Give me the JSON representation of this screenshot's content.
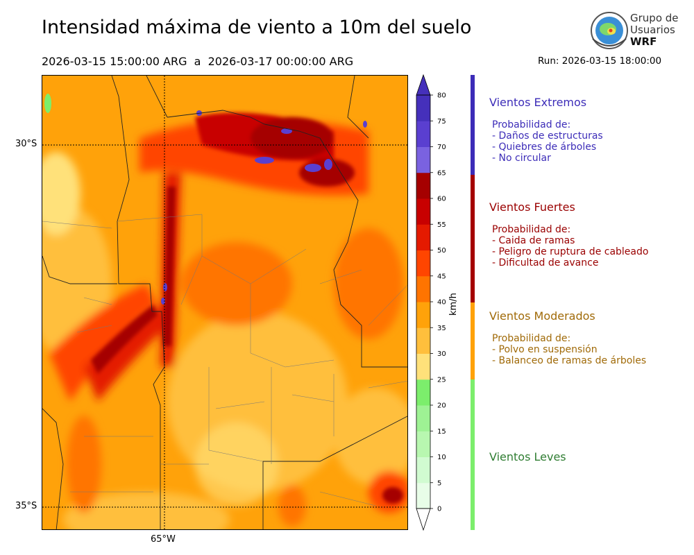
{
  "header": {
    "title": "Intensidad máxima de viento a 10m del suelo",
    "period": "2026-03-15 15:00:00 ARG  a  2026-03-17 00:00:00 ARG",
    "run": "Run: 2026-03-15 18:00:00"
  },
  "logo": {
    "line1": "Grupo de",
    "line2": "Usuarios",
    "line3": "WRF"
  },
  "map": {
    "lat_labels": [
      "30°S",
      "35°S"
    ],
    "lon_labels": [
      "65°W"
    ]
  },
  "colorbar": {
    "unit": "km/h",
    "ticks": [
      "0",
      "5",
      "10",
      "15",
      "20",
      "25",
      "30",
      "35",
      "40",
      "45",
      "50",
      "55",
      "60",
      "65",
      "70",
      "75",
      "80"
    ],
    "colors": [
      "#e8fde8",
      "#d1fbd1",
      "#b8f7b0",
      "#9ef294",
      "#7cee6c",
      "#ffe17a",
      "#ffbf3c",
      "#ffa20a",
      "#ff7400",
      "#ff4500",
      "#e41a00",
      "#c80000",
      "#a50000",
      "#7a62e0",
      "#5a3fd0",
      "#4530bb"
    ]
  },
  "legend": [
    {
      "title": "Vientos Extremos",
      "color": "#3c2cb8",
      "lines": [
        "Probabilidad de:",
        "- Daños de estructuras",
        "- Quiebres de árboles",
        "- No circular"
      ]
    },
    {
      "title": "Vientos Fuertes",
      "color": "#9a0000",
      "lines": [
        "Probabilidad de:",
        "- Caida de ramas",
        "- Peligro de ruptura de cableado",
        "- Dificultad de avance"
      ]
    },
    {
      "title": "Vientos Moderados",
      "color": "#a06a08",
      "lines": [
        "Probabilidad de:",
        "- Polvo en suspensión",
        "- Balanceo de ramas de árboles"
      ]
    },
    {
      "title": "Vientos Leves",
      "color": "#2f7d32",
      "lines": []
    }
  ]
}
